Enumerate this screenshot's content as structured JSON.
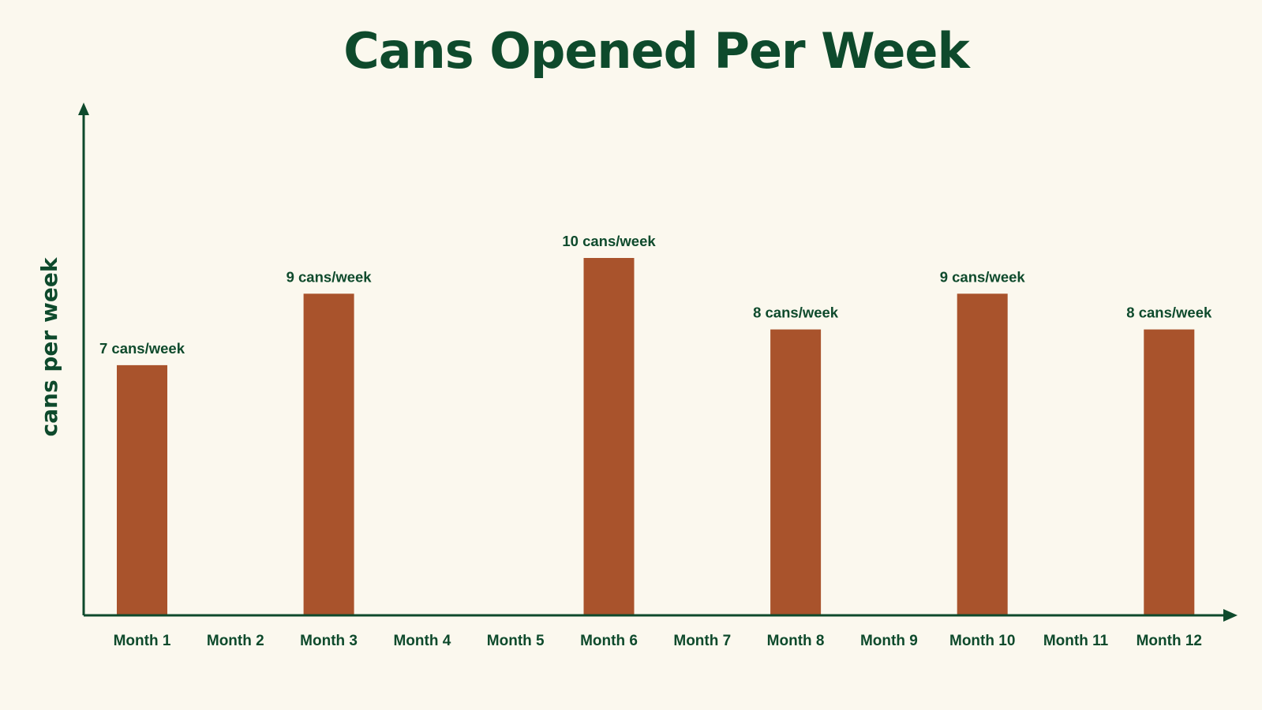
{
  "chart_data": {
    "type": "bar",
    "title": "Cans Opened Per Week",
    "xlabel": "",
    "ylabel": "cans per week",
    "categories": [
      "Month 1",
      "Month 2",
      "Month 3",
      "Month 4",
      "Month 5",
      "Month 6",
      "Month 7",
      "Month 8",
      "Month 9",
      "Month 10",
      "Month 11",
      "Month 12"
    ],
    "values": [
      7,
      null,
      9,
      null,
      null,
      10,
      null,
      8,
      null,
      9,
      null,
      8
    ],
    "data_labels": [
      "7 cans/week",
      "",
      "9 cans/week",
      "",
      "",
      "10 cans/week",
      "",
      "8 cans/week",
      "",
      "9 cans/week",
      "",
      "8 cans/week"
    ],
    "ylim": [
      0,
      14.6
    ],
    "grid": false,
    "colors": {
      "bar": "#a9532c",
      "text": "#0e4a2c",
      "axis": "#0e4a2c",
      "background": "#fbf8ee"
    }
  }
}
